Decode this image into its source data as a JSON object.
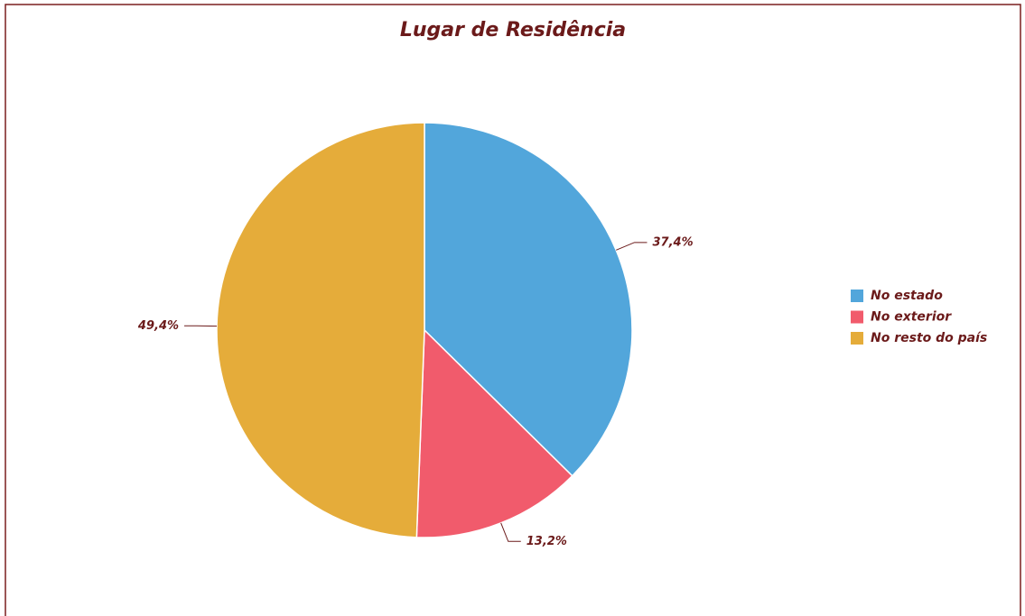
{
  "chart_data": {
    "type": "pie",
    "title": "Lugar de Residência",
    "categories": [
      "No estado",
      "No exterior",
      "No resto do país"
    ],
    "values": [
      37.4,
      13.2,
      49.4
    ],
    "value_labels": [
      "37,4%",
      "13,2%",
      "49,4%"
    ],
    "colors": [
      "#52a6db",
      "#f15b6c",
      "#e5ac3a"
    ],
    "legend": "right"
  }
}
